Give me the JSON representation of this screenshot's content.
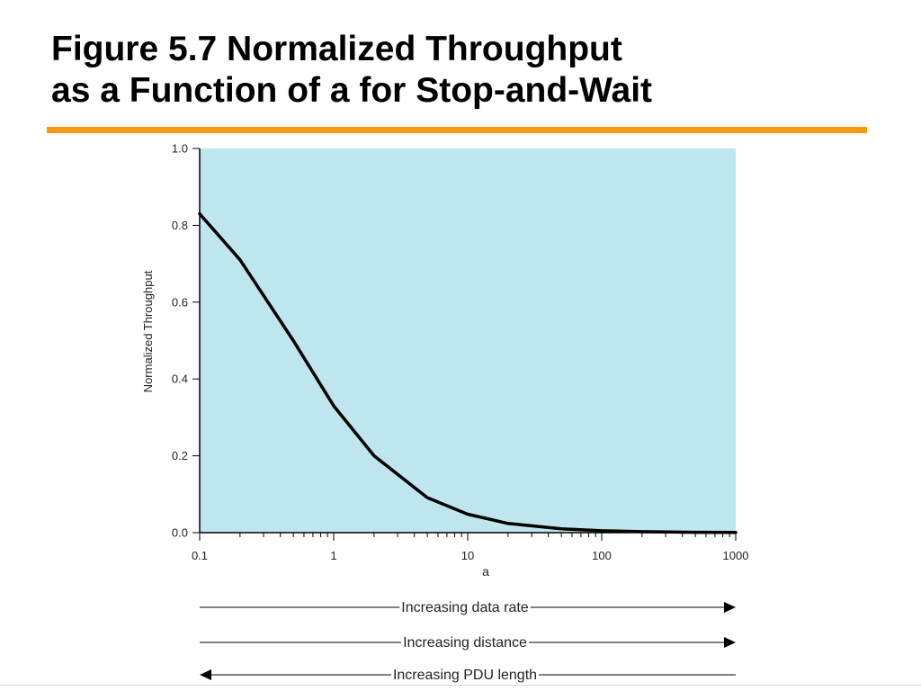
{
  "slide": {
    "title_line1": "Figure 5.7 Normalized Throughput",
    "title_line2": "as a Function of a for Stop-and-Wait",
    "accent_color": "#f59a13"
  },
  "chart_data": {
    "type": "line",
    "xscale": "log",
    "xlabel": "a",
    "ylabel": "Normalized Throughput",
    "xlim": [
      0.1,
      1000
    ],
    "ylim": [
      0.0,
      1.0
    ],
    "x_ticks": [
      "0.1",
      "1",
      "10",
      "100",
      "1000"
    ],
    "y_ticks": [
      "0.0",
      "0.2",
      "0.4",
      "0.6",
      "0.8",
      "1.0"
    ],
    "plot_background": "#bfe5ef",
    "line_color": "#000000",
    "grid": false,
    "legend": "none",
    "series": [
      {
        "x": [
          0.1,
          0.2,
          0.5,
          1,
          2,
          5,
          10,
          20,
          50,
          100,
          200,
          500,
          1000
        ],
        "y": [
          0.83,
          0.71,
          0.5,
          0.33,
          0.2,
          0.091,
          0.048,
          0.024,
          0.0099,
          0.005,
          0.0025,
          0.001,
          0.0005
        ]
      }
    ],
    "annotations": [
      {
        "text": "Increasing data rate",
        "direction": "right"
      },
      {
        "text": "Increasing distance",
        "direction": "right"
      },
      {
        "text": "Increasing PDU length",
        "direction": "left"
      }
    ]
  }
}
